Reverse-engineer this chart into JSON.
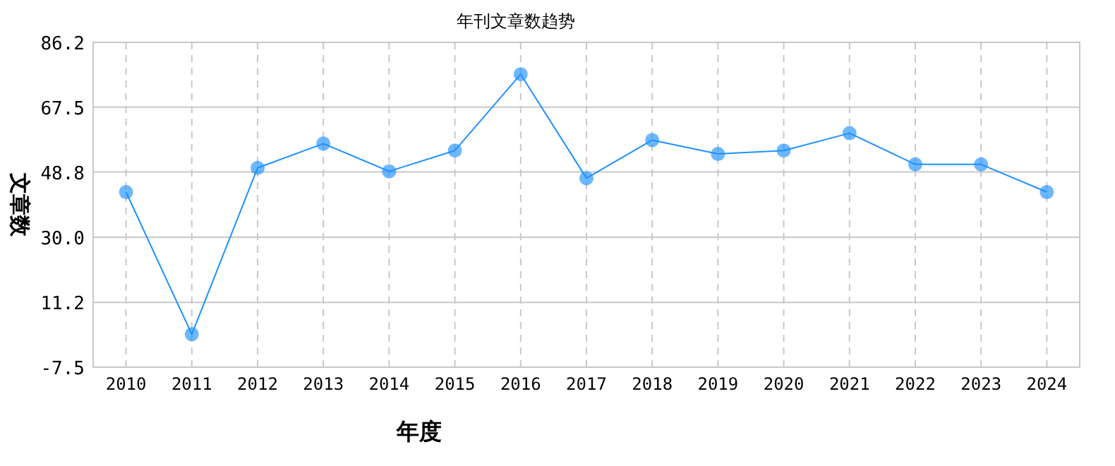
{
  "chart_data": {
    "type": "line",
    "title": "年刊文章数趋势",
    "xlabel": "年度",
    "ylabel": "文章数",
    "categories": [
      "2010",
      "2011",
      "2012",
      "2013",
      "2014",
      "2015",
      "2016",
      "2017",
      "2018",
      "2019",
      "2020",
      "2021",
      "2022",
      "2023",
      "2024"
    ],
    "series": [
      {
        "color": "#1e90ff",
        "values": [
          43,
          2,
          50,
          57,
          49,
          55,
          77,
          47,
          58,
          54,
          55,
          60,
          51,
          51,
          43
        ]
      }
    ],
    "ylim": [
      -7.5,
      86.2
    ],
    "yticks": [
      {
        "value": -7.5,
        "label": "-7.5"
      },
      {
        "value": 11.2,
        "label": "11.2"
      },
      {
        "value": 30.0,
        "label": "30.0"
      },
      {
        "value": 48.8,
        "label": "48.8"
      },
      {
        "value": 67.5,
        "label": "67.5"
      },
      {
        "value": 86.2,
        "label": "86.2"
      }
    ],
    "grid": true,
    "marker": "circle",
    "line_style": "solid"
  }
}
